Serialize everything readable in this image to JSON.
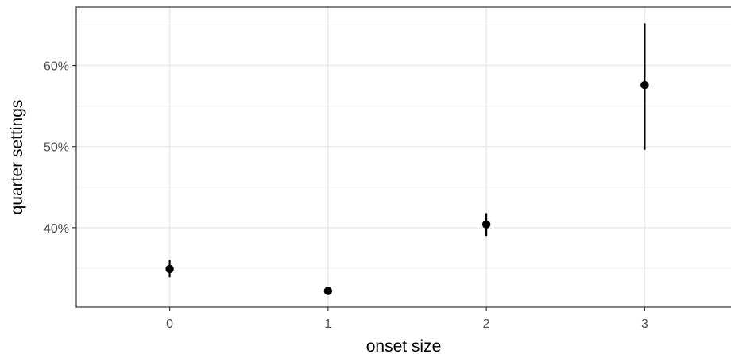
{
  "chart_data": {
    "type": "scatter",
    "title": "",
    "xlabel": "onset size",
    "ylabel": "quarter settings",
    "x": [
      0,
      1,
      2,
      3
    ],
    "series": [
      {
        "values": [
          34.9,
          32.2,
          40.4,
          57.6
        ],
        "error_low": [
          33.9,
          31.9,
          39.0,
          49.6
        ],
        "error_high": [
          36.0,
          32.5,
          41.8,
          65.2
        ]
      }
    ],
    "xlim": [
      -0.59,
      3.55
    ],
    "ylim": [
      30.2,
      67.2
    ],
    "x_ticks": [
      0,
      1,
      2,
      3
    ],
    "x_tick_labels": [
      "0",
      "1",
      "2",
      "3"
    ],
    "y_ticks": [
      40,
      50,
      60
    ],
    "y_tick_labels": [
      "40%",
      "50%",
      "60%"
    ],
    "y_minor_ticks": [
      35,
      45,
      55,
      65
    ],
    "grid": true,
    "legend": "none",
    "colors": {
      "points": "#000000",
      "grid_major": "#ebebeb",
      "grid_minor": "#f2f2f2",
      "panel_border": "#333333",
      "tick_text": "#4d4d4d"
    }
  }
}
